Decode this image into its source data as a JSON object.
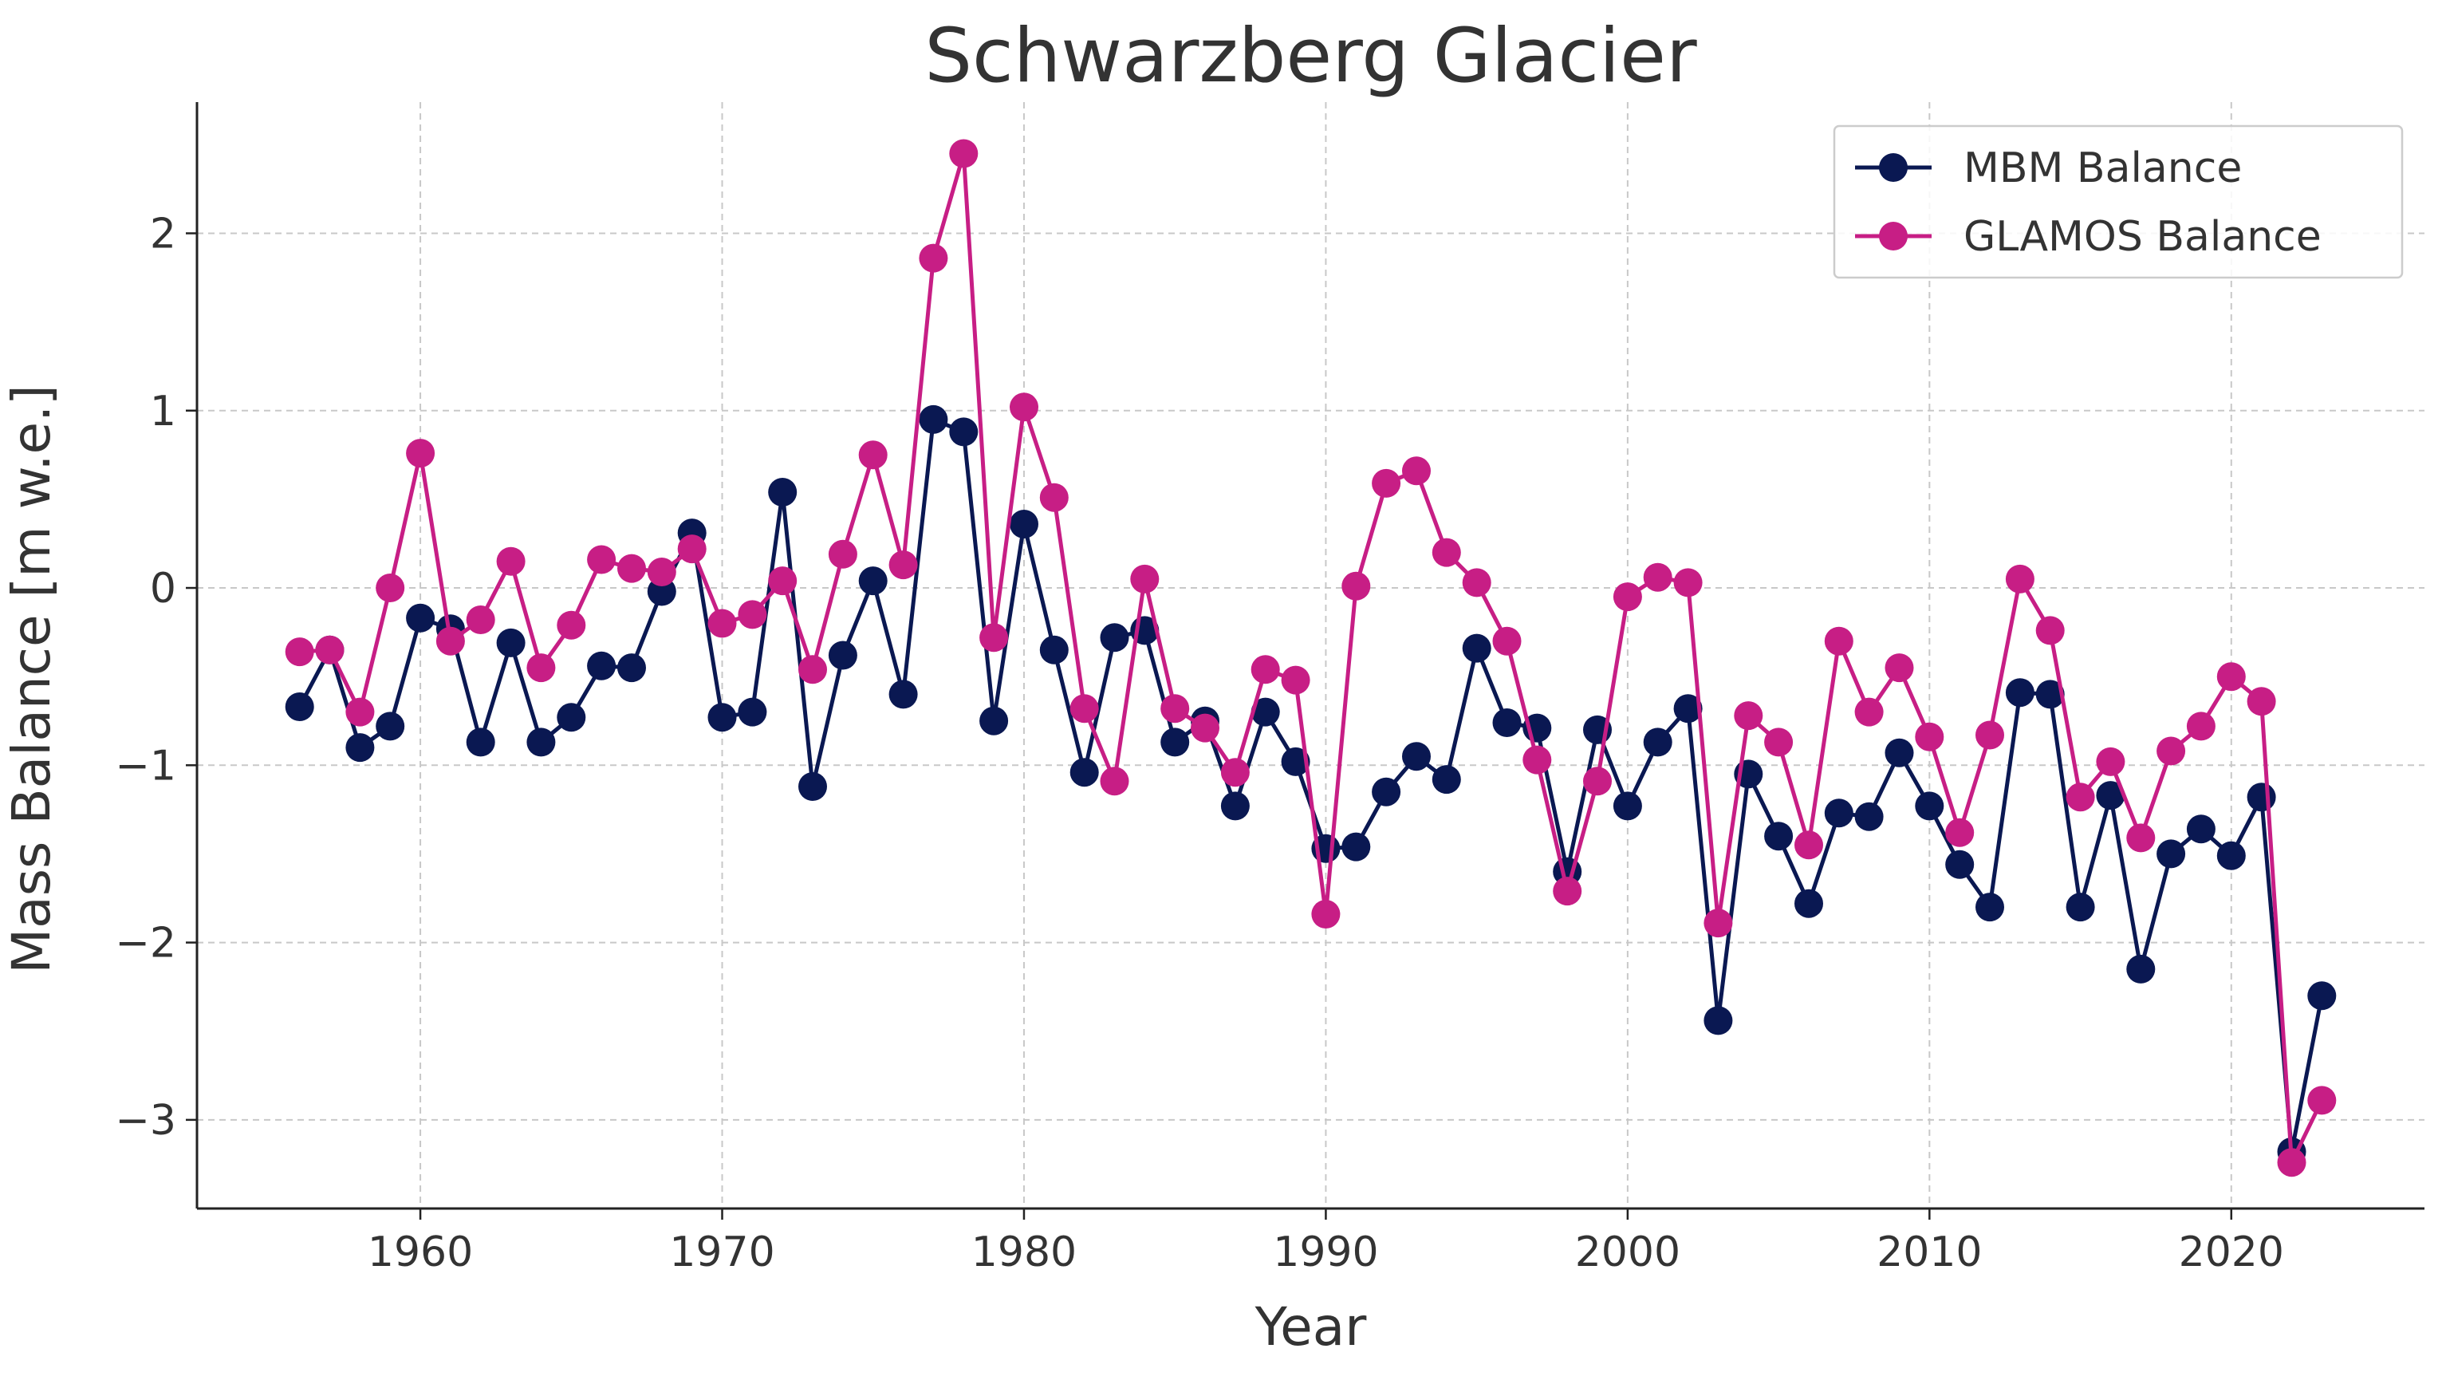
{
  "chart_data": {
    "type": "line",
    "title": "Schwarzberg Glacier",
    "xlabel": "Year",
    "ylabel": "Mass Balance [m w.e.]",
    "xlim": [
      1952.6,
      2026.4
    ],
    "ylim": [
      -3.5,
      2.74
    ],
    "x_ticks": [
      1960,
      1970,
      1980,
      1990,
      2000,
      2010,
      2020
    ],
    "x_tick_labels": [
      "1960",
      "1970",
      "1980",
      "1990",
      "2000",
      "2010",
      "2020"
    ],
    "y_ticks": [
      -3,
      -2,
      -1,
      0,
      1,
      2
    ],
    "y_tick_labels": [
      "−3",
      "−2",
      "−1",
      "0",
      "1",
      "2"
    ],
    "grid": true,
    "legend_position": "top-right",
    "x": [
      1956,
      1957,
      1958,
      1959,
      1960,
      1961,
      1962,
      1963,
      1964,
      1965,
      1966,
      1967,
      1968,
      1969,
      1970,
      1971,
      1972,
      1973,
      1974,
      1975,
      1976,
      1977,
      1978,
      1979,
      1980,
      1981,
      1982,
      1983,
      1984,
      1985,
      1986,
      1987,
      1988,
      1989,
      1990,
      1991,
      1992,
      1993,
      1994,
      1995,
      1996,
      1997,
      1998,
      1999,
      2000,
      2001,
      2002,
      2003,
      2004,
      2005,
      2006,
      2007,
      2008,
      2009,
      2010,
      2011,
      2012,
      2013,
      2014,
      2015,
      2016,
      2017,
      2018,
      2019,
      2020,
      2021,
      2022,
      2023
    ],
    "series": [
      {
        "name": "MBM Balance",
        "color": "#0a1852",
        "values": [
          -0.67,
          -0.35,
          -0.9,
          -0.78,
          -0.17,
          -0.23,
          -0.87,
          -0.31,
          -0.87,
          -0.73,
          -0.44,
          -0.45,
          -0.02,
          0.31,
          -0.73,
          -0.7,
          0.54,
          -1.12,
          -0.38,
          0.04,
          -0.6,
          0.95,
          0.88,
          -0.75,
          0.36,
          -0.35,
          -1.04,
          -0.28,
          -0.24,
          -0.87,
          -0.75,
          -1.23,
          -0.7,
          -0.98,
          -1.47,
          -1.46,
          -1.15,
          -0.95,
          -1.08,
          -0.34,
          -0.76,
          -0.79,
          -1.6,
          -0.8,
          -1.23,
          -0.87,
          -0.68,
          -2.44,
          -1.05,
          -1.4,
          -1.78,
          -1.27,
          -1.29,
          -0.93,
          -1.23,
          -1.56,
          -1.8,
          -0.59,
          -0.6,
          -1.8,
          -1.17,
          -2.15,
          -1.5,
          -1.36,
          -1.51,
          -1.18,
          -3.18,
          -2.3
        ]
      },
      {
        "name": "GLAMOS Balance",
        "color": "#c71e85",
        "values": [
          -0.36,
          -0.35,
          -0.7,
          0.0,
          0.76,
          -0.3,
          -0.18,
          0.15,
          -0.45,
          -0.21,
          0.16,
          0.11,
          0.09,
          0.22,
          -0.2,
          -0.15,
          0.04,
          -0.46,
          0.19,
          0.75,
          0.13,
          1.86,
          2.45,
          -0.28,
          1.02,
          0.51,
          -0.68,
          -1.09,
          0.05,
          -0.68,
          -0.79,
          -1.04,
          -0.46,
          -0.52,
          -1.84,
          0.01,
          0.59,
          0.66,
          0.2,
          0.03,
          -0.3,
          -0.97,
          -1.71,
          -1.09,
          -0.05,
          0.06,
          0.03,
          -1.89,
          -0.72,
          -0.87,
          -1.45,
          -0.3,
          -0.7,
          -0.45,
          -0.84,
          -1.38,
          -0.83,
          0.05,
          -0.24,
          -1.18,
          -0.98,
          -1.41,
          -0.92,
          -0.78,
          -0.5,
          -0.64,
          -3.24,
          -2.89
        ]
      }
    ]
  }
}
